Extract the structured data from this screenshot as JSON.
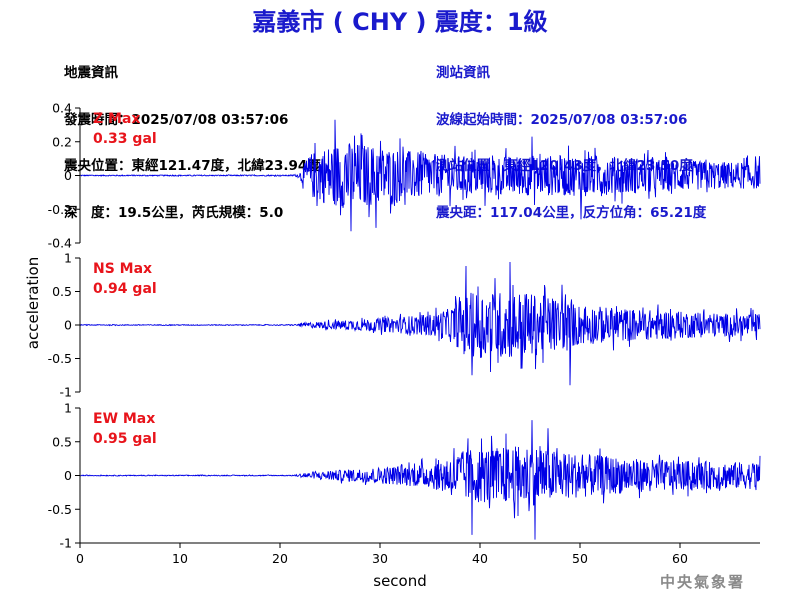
{
  "header": {
    "title": "嘉義市 ( CHY ) 震度：1級",
    "quake_info": {
      "heading": "地震資訊",
      "time": "發震時間：2025/07/08 03:57:06",
      "epicenter": "震央位置：東經121.47度，北緯23.94度",
      "depth_mag": "深　度：19.5公里，芮氏規模：5.0"
    },
    "station_info": {
      "heading": "測站資訊",
      "wave_start": "波線起始時間：2025/07/08 03:57:06",
      "location": "測站位置：東經120.43度，北緯23.50度",
      "distance": "震央距：117.04公里，反方位角：65.21度"
    }
  },
  "agency": "中央氣象署",
  "colors": {
    "trace": "#0000e6",
    "max_label": "#e8141b",
    "title": "#1a1acc"
  },
  "chart_data": {
    "type": "line",
    "xlabel": "second",
    "ylabel": "acceleration",
    "xlim": [
      0,
      68
    ],
    "x_ticks": [
      0,
      10,
      20,
      30,
      40,
      50,
      60
    ],
    "noise_until_s": 22,
    "series": [
      {
        "name": "Z",
        "max_label": "Z Max",
        "max_value": "0.33 gal",
        "ylim": [
          -0.4,
          0.4
        ],
        "y_ticks": [
          -0.4,
          -0.2,
          0,
          0.2,
          0.4
        ],
        "y_tick_labels": [
          "-0.4",
          "-0.2",
          "0",
          "0.2",
          "0.4"
        ],
        "envelope": [
          [
            0,
            0.006
          ],
          [
            21,
            0.006
          ],
          [
            22,
            0.02
          ],
          [
            23,
            0.13
          ],
          [
            25,
            0.18
          ],
          [
            27,
            0.2
          ],
          [
            30,
            0.17
          ],
          [
            35,
            0.13
          ],
          [
            40,
            0.11
          ],
          [
            45,
            0.12
          ],
          [
            50,
            0.12
          ],
          [
            55,
            0.11
          ],
          [
            60,
            0.09
          ],
          [
            65,
            0.08
          ],
          [
            68,
            0.08
          ]
        ],
        "peaks": [
          [
            25.5,
            0.33
          ],
          [
            27.1,
            -0.33
          ],
          [
            29.6,
            -0.31
          ],
          [
            28.2,
            0.24
          ],
          [
            32,
            0.22
          ],
          [
            45.2,
            0.23
          ],
          [
            50.1,
            -0.26
          ],
          [
            40.5,
            -0.18
          ]
        ]
      },
      {
        "name": "NS",
        "max_label": "NS Max",
        "max_value": "0.94 gal",
        "ylim": [
          -1,
          1
        ],
        "y_ticks": [
          -1,
          -0.5,
          0,
          0.5,
          1
        ],
        "y_tick_labels": [
          "-1",
          "-0.5",
          "0",
          "0.5",
          "1"
        ],
        "envelope": [
          [
            0,
            0.012
          ],
          [
            21,
            0.012
          ],
          [
            23,
            0.04
          ],
          [
            25,
            0.06
          ],
          [
            30,
            0.1
          ],
          [
            35,
            0.16
          ],
          [
            37,
            0.25
          ],
          [
            39,
            0.48
          ],
          [
            42,
            0.5
          ],
          [
            44,
            0.5
          ],
          [
            47,
            0.42
          ],
          [
            50,
            0.3
          ],
          [
            55,
            0.24
          ],
          [
            60,
            0.2
          ],
          [
            65,
            0.17
          ],
          [
            68,
            0.17
          ]
        ],
        "peaks": [
          [
            43,
            0.94
          ],
          [
            38.6,
            0.88
          ],
          [
            49,
            -0.9
          ],
          [
            39.2,
            -0.75
          ],
          [
            44.2,
            -0.65
          ],
          [
            41.5,
            0.7
          ],
          [
            46.5,
            0.55
          ],
          [
            48.2,
            0.6
          ]
        ]
      },
      {
        "name": "EW",
        "max_label": "EW Max",
        "max_value": "0.95 gal",
        "ylim": [
          -1,
          1
        ],
        "y_ticks": [
          -1,
          -0.5,
          0,
          0.5,
          1
        ],
        "y_tick_labels": [
          "-1",
          "-0.5",
          "0",
          "0.5",
          "1"
        ],
        "envelope": [
          [
            0,
            0.012
          ],
          [
            21,
            0.012
          ],
          [
            23,
            0.04
          ],
          [
            25,
            0.07
          ],
          [
            30,
            0.12
          ],
          [
            35,
            0.18
          ],
          [
            37,
            0.3
          ],
          [
            39,
            0.4
          ],
          [
            42,
            0.42
          ],
          [
            45,
            0.45
          ],
          [
            48,
            0.35
          ],
          [
            52,
            0.3
          ],
          [
            55,
            0.25
          ],
          [
            60,
            0.22
          ],
          [
            65,
            0.2
          ],
          [
            68,
            0.2
          ]
        ],
        "peaks": [
          [
            45.5,
            -0.95
          ],
          [
            45.2,
            0.82
          ],
          [
            39.2,
            -0.88
          ],
          [
            42.6,
            0.62
          ],
          [
            38.8,
            0.55
          ],
          [
            46.8,
            0.7
          ],
          [
            52,
            0.4
          ],
          [
            43.8,
            -0.6
          ]
        ]
      }
    ]
  }
}
